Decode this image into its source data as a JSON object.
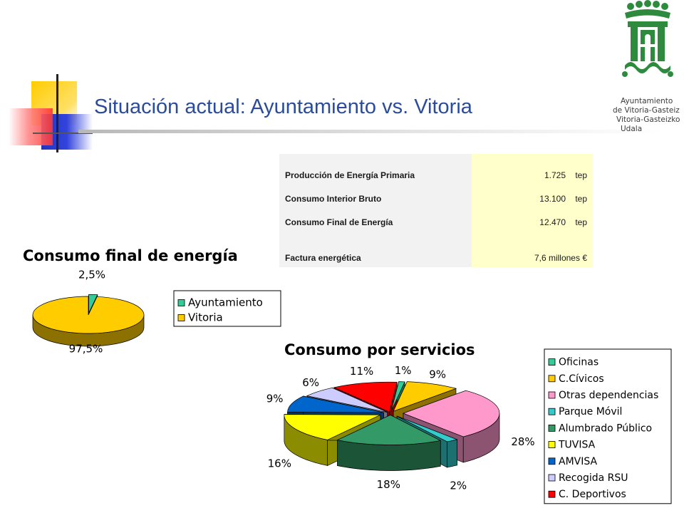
{
  "title": "Situación actual: Ayuntamiento vs. Vitoria",
  "logo": {
    "lines": [
      "Ayuntamiento",
      "de Vitoria-Gasteiz",
      "Vitoria-Gasteizko",
      "Udala"
    ],
    "color": "#2e8b3e"
  },
  "table": {
    "rows": [
      {
        "label": "Producción de Energía Primaria",
        "value": "1.725",
        "unit": "tep"
      },
      {
        "label": "Consumo Interior Bruto",
        "value": "13.100",
        "unit": "tep"
      },
      {
        "label": "Consumo Final de Energía",
        "value": "12.470",
        "unit": "tep"
      },
      {
        "label": "Factura energética",
        "value": "7,6 millones €",
        "unit": ""
      }
    ]
  },
  "chart_data": [
    {
      "type": "pie",
      "title": "Consumo final de energía",
      "categories": [
        "Ayuntamiento",
        "Vitoria"
      ],
      "values": [
        2.5,
        97.5
      ],
      "labels": [
        "2,5%",
        "97,5%"
      ],
      "colors": [
        "#33cc99",
        "#ffcc00"
      ],
      "legend": "right"
    },
    {
      "type": "pie",
      "title": "Consumo por servicios",
      "categories": [
        "Oficinas",
        "C.Cívicos",
        "Otras dependencias",
        "Parque Móvil",
        "Alumbrado Público",
        "TUVISA",
        "AMVISA",
        "Recogida RSU",
        "C. Deportivos"
      ],
      "values": [
        1,
        9,
        28,
        2,
        18,
        16,
        9,
        6,
        11
      ],
      "labels": [
        "1%",
        "9%",
        "28%",
        "2%",
        "18%",
        "16%",
        "9%",
        "6%",
        "11%"
      ],
      "colors": [
        "#33cc99",
        "#ffcc00",
        "#ff99cc",
        "#33cccc",
        "#339966",
        "#ffff00",
        "#0066cc",
        "#ccccff",
        "#ff0000"
      ],
      "legend": "right"
    }
  ]
}
